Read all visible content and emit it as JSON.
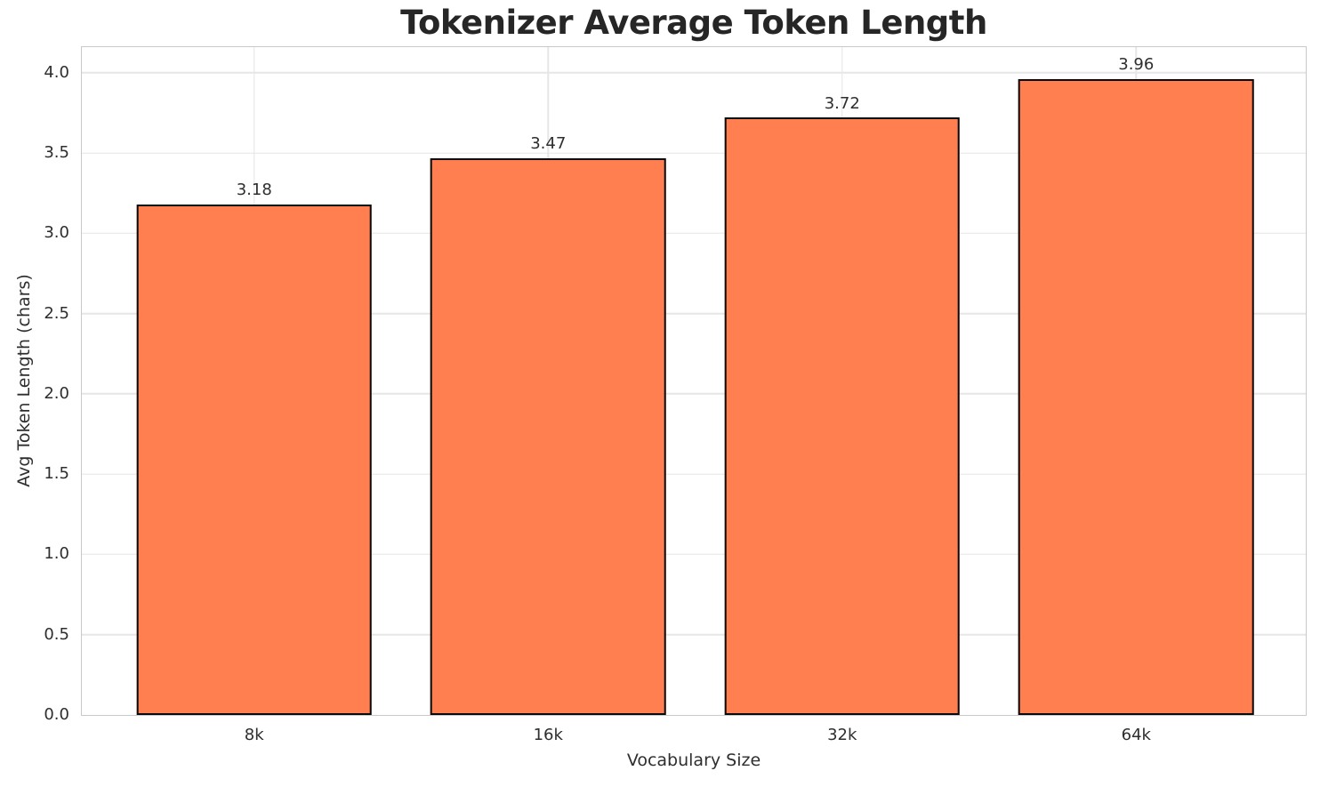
{
  "chart_data": {
    "type": "bar",
    "title": "Tokenizer Average Token Length",
    "xlabel": "Vocabulary Size",
    "ylabel": "Avg Token Length (chars)",
    "categories": [
      "8k",
      "16k",
      "32k",
      "64k"
    ],
    "values": [
      3.18,
      3.47,
      3.72,
      3.96
    ],
    "value_labels": [
      "3.18",
      "3.47",
      "3.72",
      "3.96"
    ],
    "ylim": [
      0,
      4.16
    ],
    "yticks": [
      0.0,
      0.5,
      1.0,
      1.5,
      2.0,
      2.5,
      3.0,
      3.5,
      4.0
    ],
    "ytick_labels": [
      "0.0",
      "0.5",
      "1.0",
      "1.5",
      "2.0",
      "2.5",
      "3.0",
      "3.5",
      "4.0"
    ],
    "grid": true,
    "legend_position": "none",
    "colors": {
      "bar_fill": "#FF7F50",
      "bar_edge": "#0a0a0a",
      "grid": "#e6e6e6",
      "spine": "#c9c9c9",
      "title_text": "#262626",
      "tick_text": "#2e2e2e",
      "background": "#ffffff"
    }
  }
}
